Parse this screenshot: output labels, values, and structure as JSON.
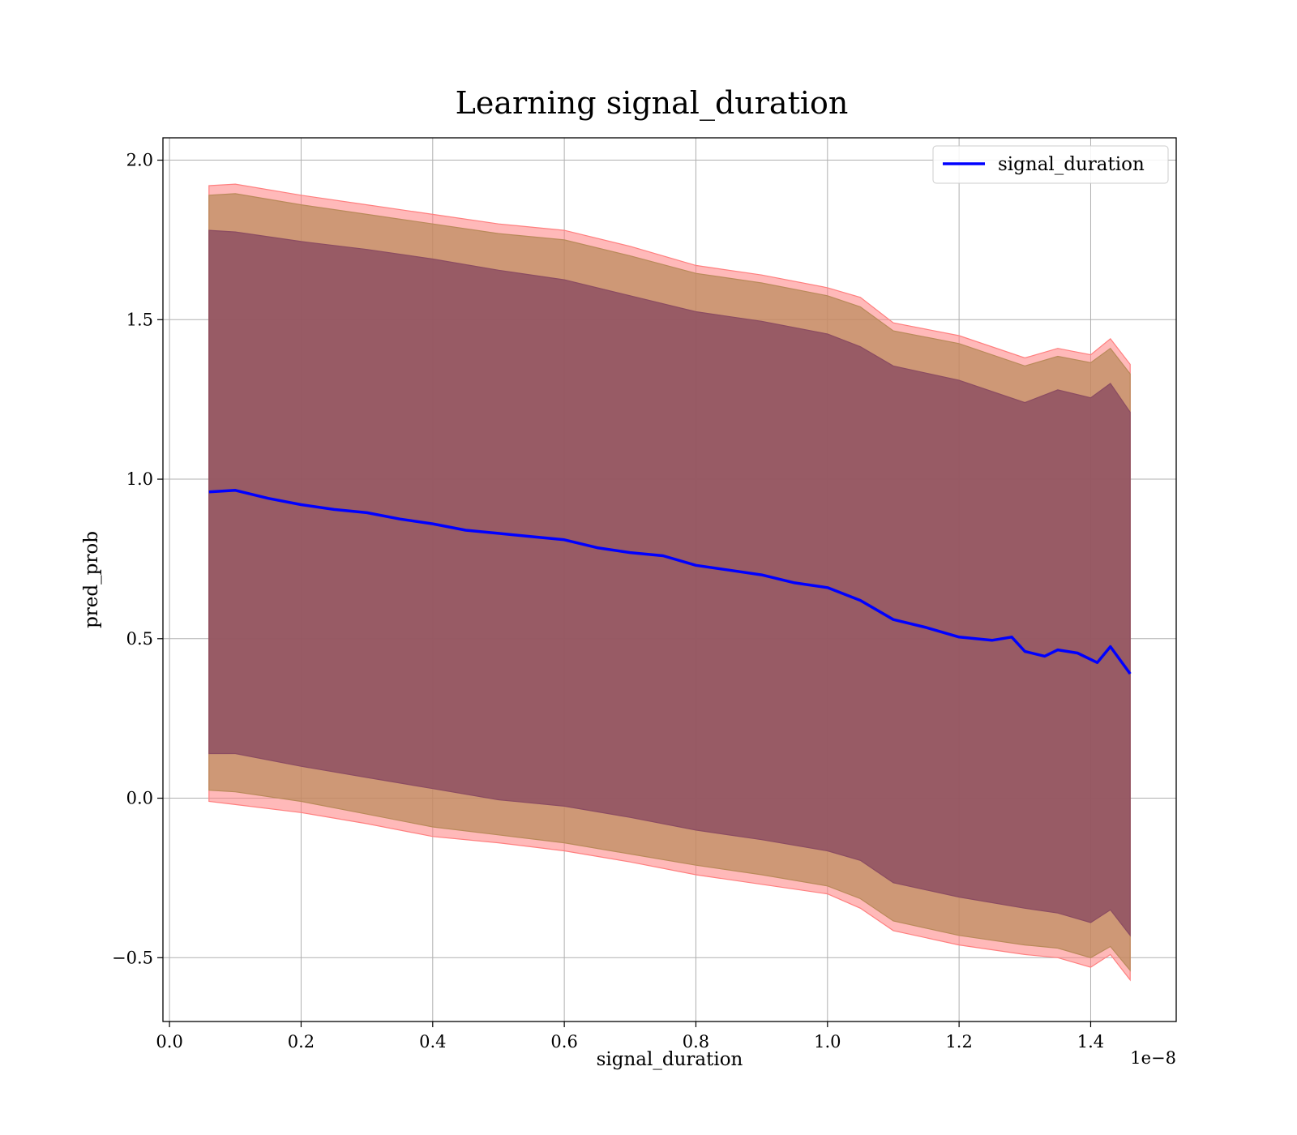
{
  "chart_data": {
    "type": "line",
    "title": "Learning signal_duration",
    "xlabel": "signal_duration",
    "ylabel": "pred_prob",
    "x_offset_label": "1e−8",
    "xlim": [
      -0.01,
      1.53
    ],
    "ylim": [
      -0.7,
      2.07
    ],
    "x_ticks": [
      0.0,
      0.2,
      0.4,
      0.6,
      0.8,
      1.0,
      1.2,
      1.4
    ],
    "x_tick_labels": [
      "0.0",
      "0.2",
      "0.4",
      "0.6",
      "0.8",
      "1.0",
      "1.2",
      "1.4"
    ],
    "y_ticks": [
      -0.5,
      0.0,
      0.5,
      1.0,
      1.5,
      2.0
    ],
    "y_tick_labels": [
      "−0.5",
      "0.0",
      "0.5",
      "1.0",
      "1.5",
      "2.0"
    ],
    "grid": true,
    "legend_position": "top-right",
    "series": [
      {
        "name": "signal_duration",
        "color": "#0000ff",
        "x": [
          0.06,
          0.1,
          0.15,
          0.2,
          0.25,
          0.3,
          0.35,
          0.4,
          0.45,
          0.5,
          0.55,
          0.6,
          0.65,
          0.7,
          0.75,
          0.8,
          0.85,
          0.9,
          0.95,
          1.0,
          1.05,
          1.1,
          1.15,
          1.2,
          1.25,
          1.28,
          1.3,
          1.33,
          1.35,
          1.38,
          1.41,
          1.43,
          1.46
        ],
        "y": [
          0.96,
          0.965,
          0.94,
          0.92,
          0.905,
          0.895,
          0.875,
          0.86,
          0.84,
          0.83,
          0.82,
          0.81,
          0.785,
          0.77,
          0.76,
          0.73,
          0.715,
          0.7,
          0.675,
          0.66,
          0.62,
          0.56,
          0.535,
          0.505,
          0.495,
          0.505,
          0.46,
          0.445,
          0.465,
          0.455,
          0.425,
          0.475,
          0.39
        ]
      }
    ],
    "bands": [
      {
        "color": "#ff7f7f",
        "x": [
          0.06,
          0.1,
          0.2,
          0.3,
          0.4,
          0.5,
          0.6,
          0.7,
          0.8,
          0.9,
          1.0,
          1.05,
          1.1,
          1.2,
          1.3,
          1.35,
          1.4,
          1.43,
          1.46
        ],
        "upper": [
          1.92,
          1.925,
          1.89,
          1.86,
          1.83,
          1.8,
          1.78,
          1.73,
          1.67,
          1.64,
          1.6,
          1.57,
          1.49,
          1.45,
          1.38,
          1.41,
          1.39,
          1.44,
          1.36
        ],
        "lower": [
          -0.01,
          -0.02,
          -0.045,
          -0.08,
          -0.12,
          -0.14,
          -0.165,
          -0.2,
          -0.24,
          -0.27,
          -0.3,
          -0.345,
          -0.415,
          -0.46,
          -0.49,
          -0.5,
          -0.53,
          -0.49,
          -0.57
        ]
      },
      {
        "color": "#b98a5a",
        "x": [
          0.06,
          0.1,
          0.2,
          0.3,
          0.4,
          0.5,
          0.6,
          0.7,
          0.8,
          0.9,
          1.0,
          1.05,
          1.1,
          1.2,
          1.3,
          1.35,
          1.4,
          1.43,
          1.46
        ],
        "upper": [
          1.89,
          1.895,
          1.86,
          1.83,
          1.8,
          1.77,
          1.75,
          1.7,
          1.645,
          1.615,
          1.575,
          1.54,
          1.465,
          1.425,
          1.355,
          1.385,
          1.365,
          1.41,
          1.33
        ],
        "lower": [
          0.025,
          0.02,
          -0.01,
          -0.05,
          -0.09,
          -0.115,
          -0.14,
          -0.175,
          -0.21,
          -0.24,
          -0.275,
          -0.315,
          -0.385,
          -0.43,
          -0.46,
          -0.47,
          -0.5,
          -0.465,
          -0.54
        ]
      },
      {
        "color": "#8b4c62",
        "x": [
          0.06,
          0.1,
          0.2,
          0.3,
          0.4,
          0.5,
          0.6,
          0.7,
          0.8,
          0.9,
          1.0,
          1.05,
          1.1,
          1.2,
          1.3,
          1.35,
          1.4,
          1.43,
          1.46
        ],
        "upper": [
          1.78,
          1.775,
          1.745,
          1.72,
          1.69,
          1.655,
          1.625,
          1.575,
          1.525,
          1.495,
          1.455,
          1.415,
          1.355,
          1.31,
          1.24,
          1.28,
          1.255,
          1.3,
          1.21
        ],
        "lower": [
          0.14,
          0.14,
          0.1,
          0.065,
          0.03,
          -0.005,
          -0.025,
          -0.06,
          -0.1,
          -0.13,
          -0.165,
          -0.195,
          -0.265,
          -0.31,
          -0.345,
          -0.36,
          -0.39,
          -0.35,
          -0.43
        ]
      }
    ]
  }
}
